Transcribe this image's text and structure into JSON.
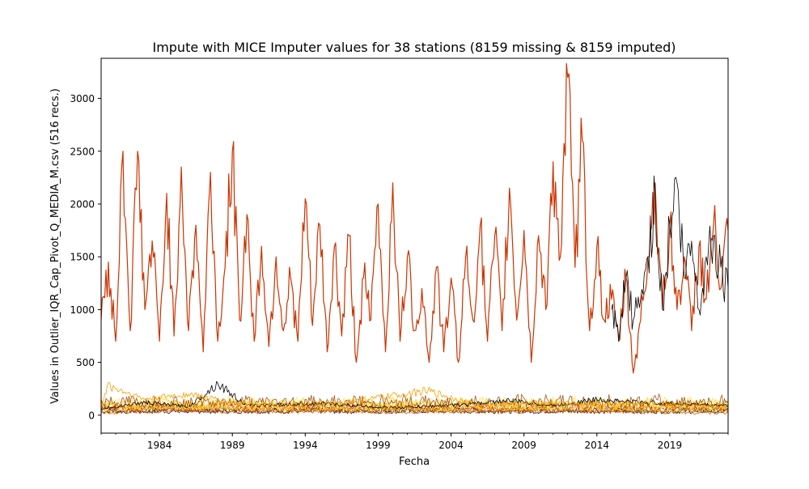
{
  "chart_data": {
    "type": "line",
    "title": "Impute with MICE Imputer values for 38 stations (8159 missing & 8159 imputed)",
    "xlabel": "Fecha",
    "ylabel": "Values in Outlier_IQR_Cap_Pivot_Q_MEDIA_M.csv (516 recs.)",
    "x_ticks": [
      "1984",
      "1989",
      "1994",
      "1999",
      "2004",
      "2009",
      "2014",
      "2019"
    ],
    "y_ticks": [
      0,
      500,
      1000,
      1500,
      2000,
      2500,
      3000
    ],
    "xlim": [
      "1980-01",
      "2023-01"
    ],
    "ylim": [
      -170,
      3380
    ],
    "legend": "none",
    "grid": false,
    "colors": {
      "dominant_series": "#cc3300",
      "secondary_series": "#000000",
      "low_series_palette": [
        "#000000",
        "#333333",
        "#cc3300",
        "#e65c00",
        "#f7a000",
        "#ffcc00",
        "#ffe066",
        "#994400"
      ]
    },
    "series": [
      {
        "color": "#cc3300",
        "x": [
          "1980-01",
          "1980-07",
          "1981-01",
          "1981-07",
          "1982-01",
          "1982-07",
          "1983-01",
          "1983-07",
          "1984-01",
          "1984-07",
          "1985-01",
          "1985-07",
          "1986-01",
          "1986-07",
          "1987-01",
          "1987-07",
          "1988-01",
          "1988-07",
          "1989-01",
          "1989-07",
          "1990-01",
          "1990-07",
          "1991-01",
          "1991-07",
          "1992-01",
          "1992-07",
          "1993-01",
          "1993-07",
          "1994-01",
          "1994-07",
          "1995-01",
          "1995-07",
          "1996-01",
          "1996-07",
          "1997-01",
          "1997-07",
          "1998-01",
          "1998-07",
          "1999-01",
          "1999-07",
          "2000-01",
          "2000-07",
          "2001-01",
          "2001-07",
          "2002-01",
          "2002-07",
          "2003-01",
          "2003-07",
          "2004-01",
          "2004-07",
          "2005-01",
          "2005-07",
          "2006-01",
          "2006-07",
          "2007-01",
          "2007-07",
          "2008-01",
          "2008-07",
          "2009-01",
          "2009-07",
          "2010-01",
          "2010-07",
          "2011-01",
          "2011-07",
          "2012-01",
          "2012-07",
          "2013-01",
          "2013-07",
          "2014-01",
          "2014-07",
          "2015-01",
          "2015-07",
          "2016-01",
          "2016-07",
          "2017-01",
          "2017-07",
          "2018-01",
          "2018-07",
          "2019-01",
          "2019-07",
          "2020-01",
          "2020-07",
          "2021-01",
          "2021-07",
          "2022-01",
          "2022-07",
          "2023-01"
        ],
        "values": [
          900,
          1450,
          700,
          2500,
          800,
          2500,
          1000,
          1650,
          700,
          2100,
          750,
          2350,
          800,
          1800,
          600,
          2300,
          700,
          1400,
          2500,
          900,
          1900,
          700,
          1600,
          650,
          1500,
          800,
          1300,
          700,
          2050,
          850,
          1800,
          600,
          1600,
          750,
          1700,
          500,
          1300,
          900,
          2000,
          600,
          2200,
          700,
          1500,
          800,
          1200,
          500,
          1400,
          600,
          1300,
          500,
          1500,
          900,
          1800,
          700,
          1700,
          800,
          2150,
          900,
          1750,
          500,
          1700,
          1000,
          2400,
          1500,
          3200,
          1400,
          2600,
          800,
          1600,
          900,
          1100,
          700,
          1300,
          400,
          900,
          1500,
          2200,
          1000,
          1800,
          1000,
          1500,
          800,
          1600,
          1100,
          1800,
          1200,
          1750
        ]
      },
      {
        "color": "#000000",
        "x": [
          "2015-01",
          "2015-07",
          "2016-01",
          "2016-07",
          "2017-01",
          "2017-07",
          "2018-01",
          "2018-07",
          "2019-01",
          "2019-07",
          "2020-01",
          "2020-07",
          "2021-01",
          "2021-07",
          "2022-01",
          "2022-07",
          "2023-01"
        ],
        "values": [
          1000,
          700,
          1300,
          900,
          1100,
          1500,
          2050,
          1000,
          1800,
          2200,
          1300,
          1650,
          1000,
          1500,
          1700,
          1400,
          1200
        ]
      },
      {
        "color": "#000000",
        "x": [
          "1980-01",
          "1983-01",
          "1986-01",
          "1988-01",
          "1990-01",
          "1995-01",
          "2000-01",
          "2005-01",
          "2008-01",
          "2011-01",
          "2014-01",
          "2016-01",
          "2019-01",
          "2023-01"
        ],
        "values": [
          60,
          120,
          80,
          300,
          90,
          110,
          70,
          100,
          140,
          90,
          150,
          130,
          110,
          90
        ]
      },
      {
        "color": "#f7a000",
        "x": [
          "1980-01",
          "1980-06",
          "1983-01",
          "1986-01",
          "1989-01",
          "1992-01",
          "1996-01",
          "2002-06",
          "2006-01",
          "2010-01",
          "2014-01",
          "2018-01",
          "2023-01"
        ],
        "values": [
          80,
          280,
          150,
          200,
          120,
          100,
          110,
          230,
          90,
          120,
          100,
          110,
          80
        ]
      },
      {
        "color": "#ffcc00",
        "x": [
          "1980-01",
          "1985-01",
          "1990-01",
          "1995-01",
          "2000-01",
          "2005-01",
          "2010-01",
          "2015-01",
          "2020-01",
          "2023-01"
        ],
        "values": [
          40,
          70,
          60,
          50,
          55,
          45,
          60,
          50,
          45,
          40
        ]
      },
      {
        "color": "#e65c00",
        "x": [
          "1980-01",
          "1985-01",
          "1990-01",
          "1995-01",
          "2000-01",
          "2005-01",
          "2010-01",
          "2015-01",
          "2020-01",
          "2023-01"
        ],
        "values": [
          20,
          40,
          30,
          35,
          25,
          30,
          35,
          30,
          25,
          20
        ]
      }
    ]
  }
}
